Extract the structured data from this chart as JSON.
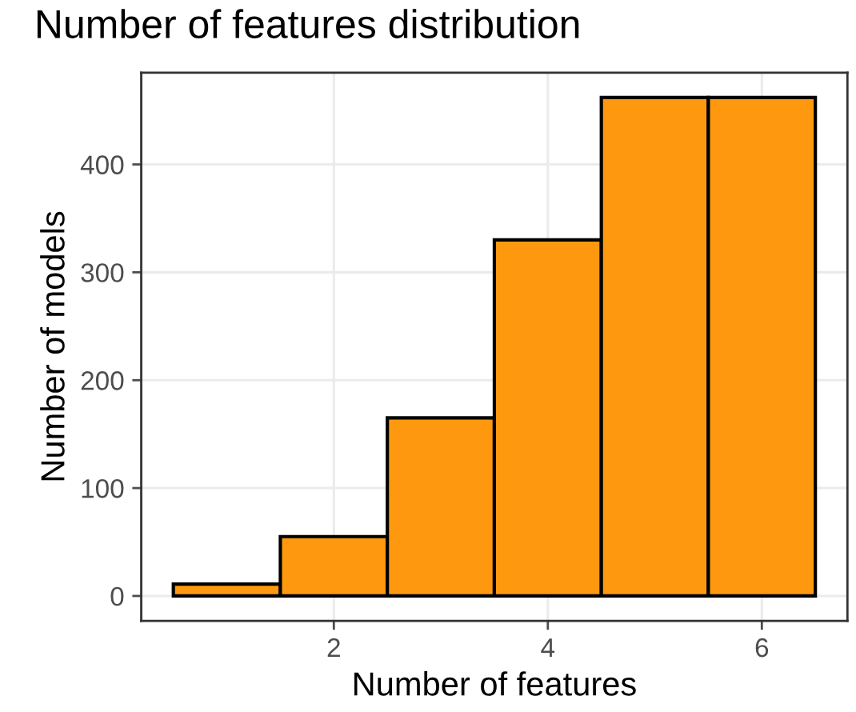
{
  "chart_data": {
    "type": "histogram",
    "title": "Number of features distribution",
    "xlabel": "Number of features",
    "ylabel": "Number of models",
    "bins": [
      0.5,
      1.5,
      2.5,
      3.5,
      4.5,
      5.5,
      6.5
    ],
    "values": [
      11,
      55,
      165,
      330,
      462,
      462
    ],
    "color": "#fe990f",
    "xlim": [
      0.2,
      6.8
    ],
    "xticks": [
      2,
      4,
      6
    ],
    "ylim": [
      -23.1,
      485.1
    ],
    "yticks": [
      0,
      100,
      200,
      300,
      400
    ],
    "grid": true
  }
}
